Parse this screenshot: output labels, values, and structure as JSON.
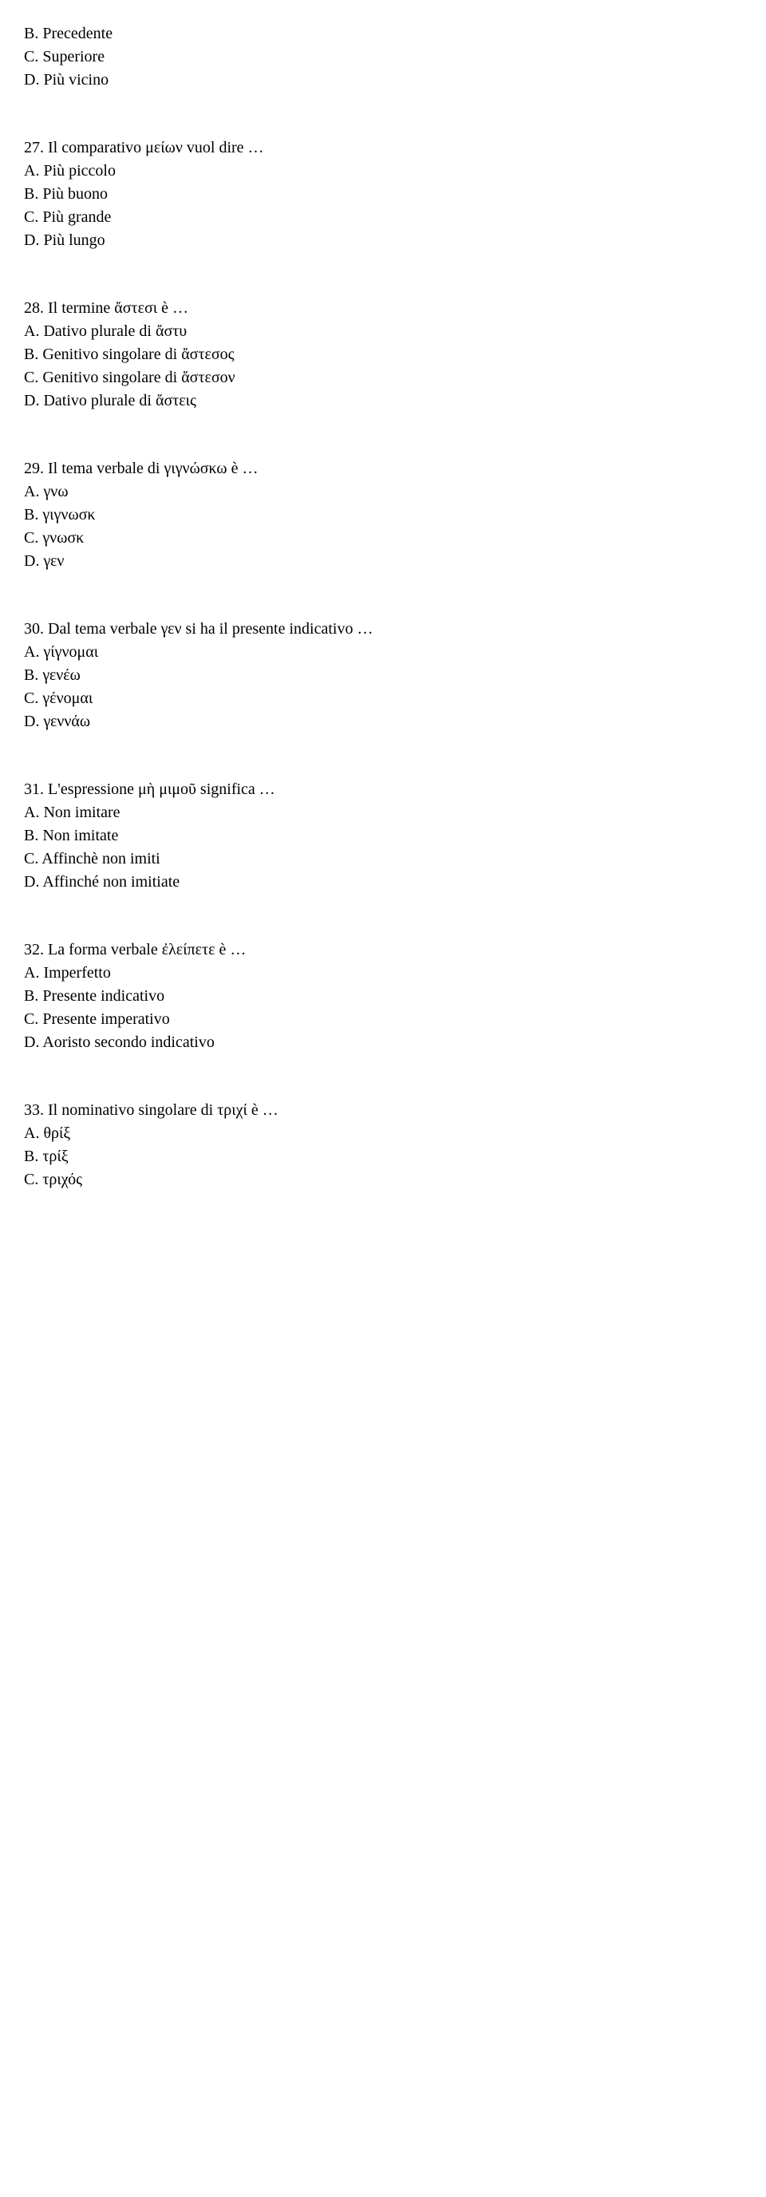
{
  "content": {
    "q26_remainder": [
      "B.  Precedente",
      "C.  Superiore",
      "D.  Più vicino"
    ],
    "q27": {
      "prompt": "27.  Il comparativo μείων vuol dire …",
      "options": [
        "A.  Più piccolo",
        "B.  Più buono",
        "C.  Più grande",
        "D.  Più lungo"
      ]
    },
    "q28": {
      "prompt": "28.  Il termine ἄστεσι è …",
      "options": [
        "A.  Dativo plurale di ἄστυ",
        "B.  Genitivo singolare di ἄστεσος",
        "C.  Genitivo singolare di ἄστεσον",
        "D.  Dativo plurale di ἄστεις"
      ]
    },
    "q29": {
      "prompt": "29.  Il tema verbale di γιγνώσκω è …",
      "options": [
        "A.  γνω",
        "B.  γιγνωσκ",
        "C.  γνωσκ",
        "D.  γεν"
      ]
    },
    "q30": {
      "prompt": "30.  Dal tema verbale γεν si ha il presente indicativo …",
      "options": [
        "A.  γίγνομαι",
        "B.  γενέω",
        "C.  γένομαι",
        "D.  γεννάω"
      ]
    },
    "q31": {
      "prompt": "31.  L'espressione μὴ μιμοῦ significa …",
      "options": [
        "A.  Non imitare",
        "B.  Non imitate",
        "C.  Affinchè non imiti",
        "D.  Affinché non imitiate"
      ]
    },
    "q32": {
      "prompt": "32.  La forma verbale ἐλείπετε è …",
      "options": [
        "A.  Imperfetto",
        "B.  Presente indicativo",
        "C.  Presente imperativo",
        "D.  Aoristo secondo indicativo"
      ]
    },
    "q33": {
      "prompt": "33.  Il nominativo singolare di τριχί è …",
      "options": [
        "A.  θρίξ",
        "B.  τρίξ",
        "C.  τριχός"
      ]
    }
  }
}
